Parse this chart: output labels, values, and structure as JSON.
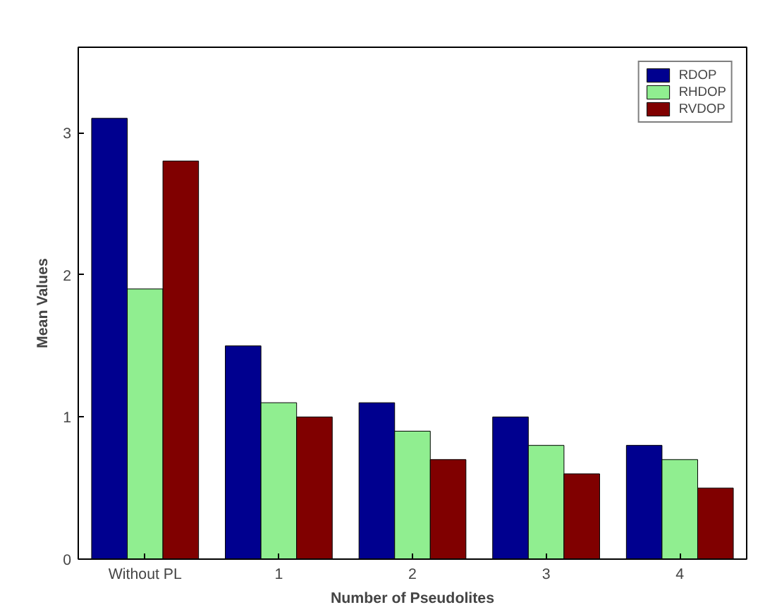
{
  "chart_data": {
    "type": "bar",
    "xlabel": "Number of Pseudolites",
    "ylabel": "Mean Values",
    "categories": [
      "Without PL",
      "1",
      "2",
      "3",
      "4"
    ],
    "series": [
      {
        "name": "RDOP",
        "color": "#00008f",
        "values": [
          3.1,
          1.5,
          1.1,
          1.0,
          0.8
        ]
      },
      {
        "name": "RHDOP",
        "color": "#90ee90",
        "values": [
          1.9,
          1.1,
          0.9,
          0.8,
          0.7
        ]
      },
      {
        "name": "RVDOP",
        "color": "#800000",
        "values": [
          2.8,
          1.0,
          0.7,
          0.6,
          0.5
        ]
      }
    ],
    "ylim": [
      0,
      3.6
    ],
    "yticks": [
      0,
      1,
      2,
      3
    ],
    "grid": false,
    "legend": "top right"
  }
}
